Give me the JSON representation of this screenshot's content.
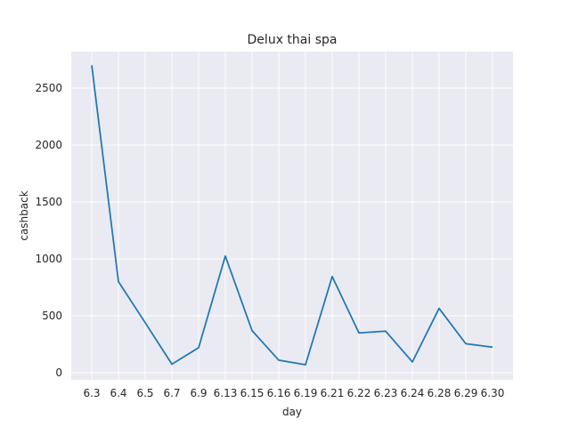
{
  "chart_data": {
    "type": "line",
    "title": "Delux thai spa",
    "xlabel": "day",
    "ylabel": "cashback",
    "categories": [
      "6.3",
      "6.4",
      "6.5",
      "6.7",
      "6.9",
      "6.13",
      "6.15",
      "6.16",
      "6.19",
      "6.21",
      "6.22",
      "6.23",
      "6.24",
      "6.28",
      "6.29",
      "6.30"
    ],
    "series": [
      {
        "values": [
          2700,
          800,
          440,
          75,
          220,
          1025,
          370,
          110,
          70,
          845,
          350,
          365,
          95,
          565,
          255,
          225
        ]
      }
    ],
    "yticks": [
      0,
      500,
      1000,
      1500,
      2000,
      2500
    ],
    "ylim": [
      -100,
      2830
    ],
    "grid": true,
    "style": "seaborn-darkgrid",
    "colors": {
      "background": "#eaeaf2",
      "grid": "#ffffff",
      "line": "#1f77b4"
    }
  }
}
